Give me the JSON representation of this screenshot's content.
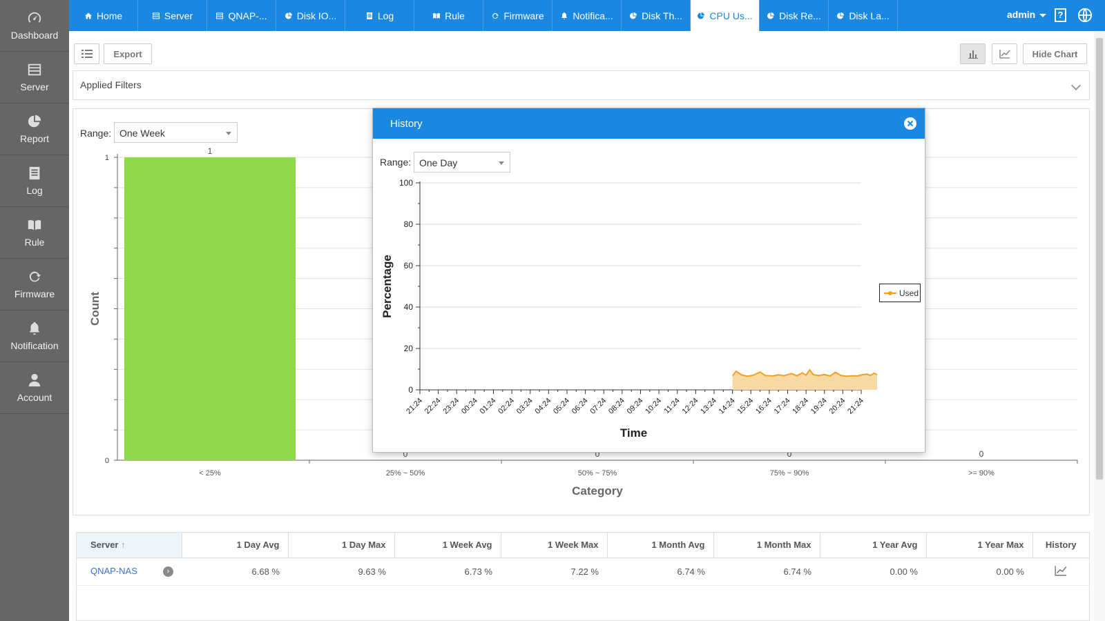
{
  "sidebar": {
    "items": [
      {
        "label": "Dashboard",
        "icon": "gauge-icon"
      },
      {
        "label": "Server",
        "icon": "server-icon"
      },
      {
        "label": "Report",
        "icon": "pie-icon"
      },
      {
        "label": "Log",
        "icon": "log-icon"
      },
      {
        "label": "Rule",
        "icon": "book-icon"
      },
      {
        "label": "Firmware",
        "icon": "refresh-icon"
      },
      {
        "label": "Notification",
        "icon": "bell-icon"
      },
      {
        "label": "Account",
        "icon": "user-icon"
      }
    ]
  },
  "tabs": [
    {
      "label": "Home",
      "icon": "home-icon"
    },
    {
      "label": "Server",
      "icon": "server-icon"
    },
    {
      "label": "QNAP-...",
      "icon": "server-icon"
    },
    {
      "label": "Disk IO...",
      "icon": "pie-icon"
    },
    {
      "label": "Log",
      "icon": "log-icon"
    },
    {
      "label": "Rule",
      "icon": "book-icon"
    },
    {
      "label": "Firmware",
      "icon": "refresh-icon"
    },
    {
      "label": "Notifica...",
      "icon": "bell-icon"
    },
    {
      "label": "Disk Th...",
      "icon": "pie-icon"
    },
    {
      "label": "CPU Us...",
      "icon": "pie-icon",
      "active": true
    },
    {
      "label": "Disk Re...",
      "icon": "pie-icon"
    },
    {
      "label": "Disk La...",
      "icon": "pie-icon"
    }
  ],
  "user": {
    "name": "admin"
  },
  "toolbar": {
    "export_label": "Export",
    "hide_chart_label": "Hide Chart"
  },
  "filters": {
    "label": "Applied Filters"
  },
  "main_range": {
    "label": "Range:",
    "value": "One Week"
  },
  "modal": {
    "title": "History",
    "range_label": "Range:",
    "range_value": "One Day"
  },
  "chart_data": [
    {
      "type": "bar",
      "categories": [
        "< 25%",
        "25% ~ 50%",
        "50% ~ 75%",
        "75% ~ 90%",
        ">= 90%"
      ],
      "values": [
        1,
        0,
        0,
        0,
        0
      ],
      "xlabel": "Category",
      "ylabel": "Count",
      "ylim": [
        0,
        1
      ],
      "color": "#8ed84a"
    },
    {
      "type": "area",
      "x": [
        "21:24",
        "22:24",
        "23:24",
        "00:24",
        "01:24",
        "02:24",
        "03:24",
        "04:24",
        "05:24",
        "06:24",
        "07:24",
        "08:24",
        "09:24",
        "10:24",
        "11:24",
        "12:24",
        "13:24",
        "14:24",
        "15:24",
        "16:24",
        "17:24",
        "18:24",
        "19:24",
        "20:24",
        "21:24"
      ],
      "series": [
        {
          "name": "Used",
          "color": "#f0a020",
          "points": [
            [
              17.0,
              6.8
            ],
            [
              17.2,
              9.0
            ],
            [
              17.5,
              7.2
            ],
            [
              17.8,
              6.6
            ],
            [
              18.1,
              7.0
            ],
            [
              18.5,
              8.6
            ],
            [
              18.8,
              6.9
            ],
            [
              19.2,
              6.7
            ],
            [
              19.5,
              7.3
            ],
            [
              19.8,
              6.8
            ],
            [
              20.2,
              7.9
            ],
            [
              20.5,
              6.8
            ],
            [
              20.8,
              8.2
            ],
            [
              21.0,
              7.1
            ],
            [
              21.2,
              9.6
            ],
            [
              21.4,
              7.3
            ],
            [
              21.7,
              6.9
            ],
            [
              22.0,
              7.4
            ],
            [
              22.3,
              6.7
            ],
            [
              22.6,
              8.5
            ],
            [
              22.9,
              6.9
            ],
            [
              23.2,
              6.6
            ],
            [
              23.5,
              6.8
            ],
            [
              23.8,
              6.7
            ],
            [
              24.0,
              7.2
            ],
            [
              24.3,
              7.6
            ],
            [
              24.5,
              7.0
            ],
            [
              24.7,
              8.0
            ],
            [
              25.0,
              6.9
            ]
          ]
        }
      ],
      "xlabel": "Time",
      "ylabel": "Percentage",
      "ylim": [
        0,
        100
      ],
      "yticks": [
        0,
        20,
        40,
        60,
        80,
        100
      ]
    }
  ],
  "table": {
    "columns": [
      "Server",
      "1 Day Avg",
      "1 Day Max",
      "1 Week Avg",
      "1 Week Max",
      "1 Month Avg",
      "1 Month Max",
      "1 Year Avg",
      "1 Year Max",
      "History"
    ],
    "rows": [
      {
        "server": "QNAP-NAS",
        "values": [
          "6.68 %",
          "9.63 %",
          "6.73 %",
          "7.22 %",
          "6.74 %",
          "6.74 %",
          "0.00 %",
          "0.00 %"
        ]
      }
    ]
  }
}
